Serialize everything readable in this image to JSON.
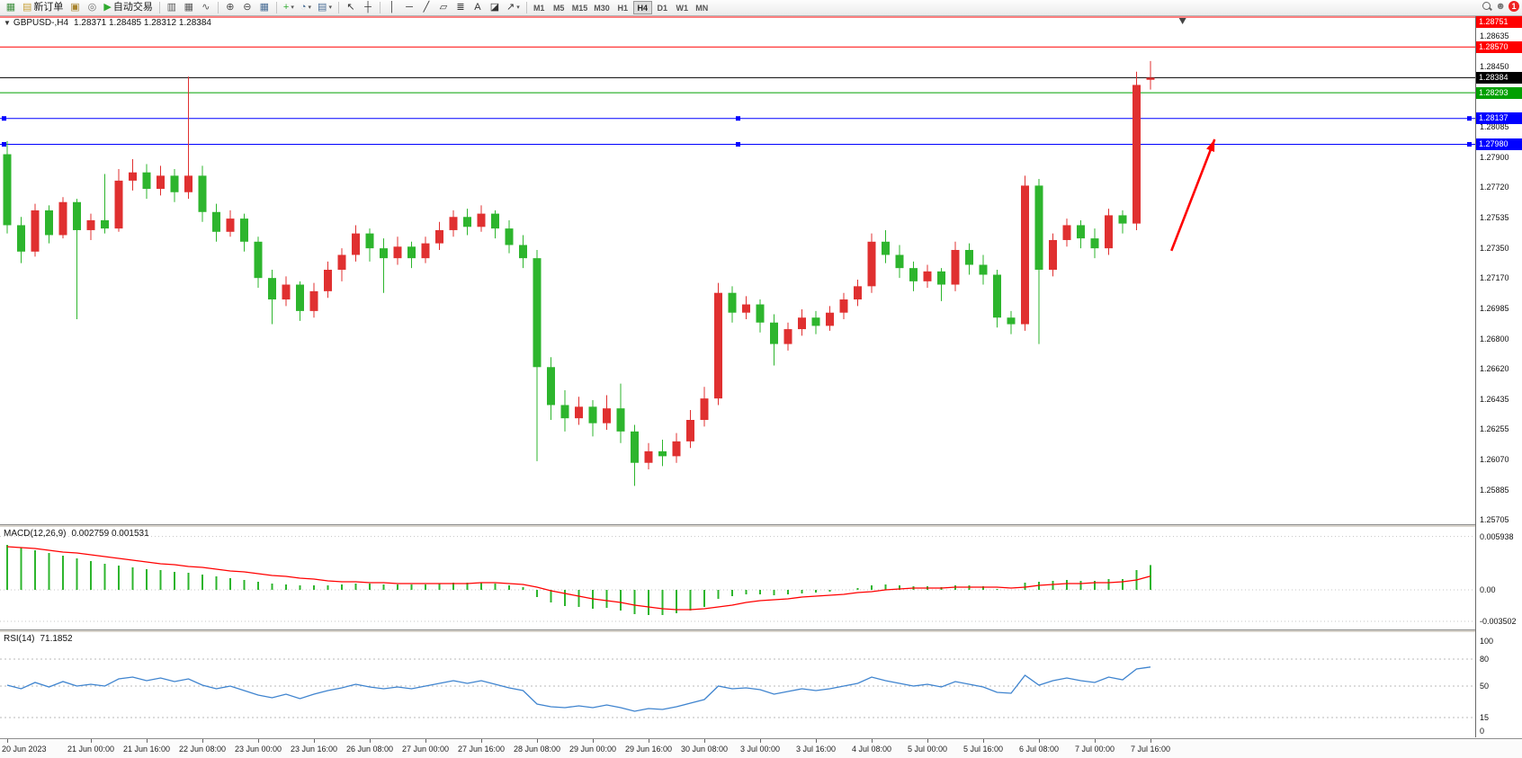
{
  "toolbar": {
    "items": [
      {
        "name": "new-chart-button",
        "type": "icon",
        "glyph": "▦",
        "color": "#3e8f3e"
      },
      {
        "name": "new-order-button",
        "type": "icon-text",
        "glyph": "▤",
        "color": "#c8a23a",
        "label": "新订单"
      },
      {
        "name": "profiles-button",
        "type": "icon",
        "glyph": "▣",
        "color": "#a8842e"
      },
      {
        "name": "notifications-button",
        "type": "icon",
        "glyph": "◎",
        "color": "#6f6f6f"
      },
      {
        "name": "autotrade-button",
        "type": "icon-text",
        "glyph": "▶",
        "color": "#2faa2f",
        "label": "自动交易"
      },
      {
        "type": "sep"
      },
      {
        "name": "bar-chart-button",
        "type": "icon",
        "glyph": "▥",
        "color": "#5a5a5a"
      },
      {
        "name": "candlestick-chart-button",
        "type": "icon",
        "glyph": "▦",
        "color": "#5a5a5a"
      },
      {
        "name": "line-chart-button",
        "type": "icon",
        "glyph": "∿",
        "color": "#5a5a5a"
      },
      {
        "type": "sep"
      },
      {
        "name": "zoom-in-button",
        "type": "icon",
        "glyph": "⊕",
        "color": "#4a4a4a"
      },
      {
        "name": "zoom-out-button",
        "type": "icon",
        "glyph": "⊖",
        "color": "#4a4a4a"
      },
      {
        "name": "tile-windows-button",
        "type": "icon",
        "glyph": "▦",
        "color": "#4a6e96"
      },
      {
        "type": "sep"
      },
      {
        "name": "indicators-button",
        "type": "icon",
        "glyph": "+",
        "color": "#2faa2f",
        "dropdown": true
      },
      {
        "name": "periods-button",
        "type": "icon",
        "glyph": "◔",
        "color": "#4a6e96",
        "dropdown": true
      },
      {
        "name": "templates-button",
        "type": "icon",
        "glyph": "▤",
        "color": "#4a6e96",
        "dropdown": true
      },
      {
        "type": "sep"
      },
      {
        "name": "cursor-button",
        "type": "icon",
        "glyph": "↖",
        "color": "#333333"
      },
      {
        "name": "crosshair-button",
        "type": "icon",
        "glyph": "┼",
        "color": "#333333"
      },
      {
        "type": "sep"
      },
      {
        "name": "vertical-line-button",
        "type": "icon",
        "glyph": "│",
        "color": "#333333"
      },
      {
        "name": "horizontal-line-button",
        "type": "icon",
        "glyph": "─",
        "color": "#333333"
      },
      {
        "name": "trendline-button",
        "type": "icon",
        "glyph": "╱",
        "color": "#333333"
      },
      {
        "name": "channel-button",
        "type": "icon",
        "glyph": "▱",
        "color": "#333333"
      },
      {
        "name": "fibonacci-button",
        "type": "icon",
        "glyph": "≣",
        "color": "#333333"
      },
      {
        "name": "text-button",
        "type": "icon",
        "glyph": "A",
        "color": "#333333"
      },
      {
        "name": "label-button",
        "type": "icon",
        "glyph": "◪",
        "color": "#333333"
      },
      {
        "name": "arrows-button",
        "type": "icon",
        "glyph": "↗",
        "color": "#333333",
        "dropdown": true
      },
      {
        "type": "sep"
      }
    ],
    "timeframes": [
      "M1",
      "M5",
      "M15",
      "M30",
      "H1",
      "H4",
      "D1",
      "W1",
      "MN"
    ],
    "active_timeframe": "H4",
    "right": {
      "user_icon": "☻",
      "badge": "1"
    }
  },
  "chart_data": [
    {
      "type": "candlestick",
      "symbol": "GBPUSD-",
      "period": "H4",
      "title": "GBPUSD-,H4",
      "ohlc_text": "1.28371 1.28485 1.28312 1.28384",
      "collapse_icon": "▼",
      "bull_color": "#e03030",
      "bear_color": "#2db52d",
      "shift_marker_index": 84.3,
      "time_labels": [
        "20 Jun 2023",
        "21 Jun 00:00",
        "21 Jun 16:00",
        "22 Jun 08:00",
        "23 Jun 00:00",
        "23 Jun 16:00",
        "26 Jun 08:00",
        "27 Jun 00:00",
        "27 Jun 16:00",
        "28 Jun 08:00",
        "29 Jun 00:00",
        "29 Jun 16:00",
        "30 Jun 08:00",
        "3 Jul 00:00",
        "3 Jul 16:00",
        "4 Jul 08:00",
        "5 Jul 00:00",
        "5 Jul 16:00",
        "6 Jul 08:00",
        "7 Jul 00:00",
        "7 Jul 16:00"
      ],
      "time_label_indices": [
        0,
        6,
        10,
        14,
        18,
        22,
        26,
        30,
        34,
        38,
        42,
        46,
        50,
        54,
        58,
        62,
        66,
        70,
        74,
        78,
        82
      ],
      "candles": [
        [
          1.2792,
          1.28,
          1.2744,
          1.2749
        ],
        [
          1.2749,
          1.2754,
          1.2726,
          1.2733
        ],
        [
          1.2733,
          1.2762,
          1.273,
          1.2758
        ],
        [
          1.2758,
          1.2761,
          1.2738,
          1.2743
        ],
        [
          1.2743,
          1.2766,
          1.2741,
          1.2763
        ],
        [
          1.2763,
          1.2765,
          1.2692,
          1.2746
        ],
        [
          1.2746,
          1.2756,
          1.274,
          1.2752
        ],
        [
          1.2752,
          1.278,
          1.2744,
          1.2747
        ],
        [
          1.2747,
          1.2783,
          1.2745,
          1.2776
        ],
        [
          1.2776,
          1.2789,
          1.277,
          1.2781
        ],
        [
          1.2781,
          1.2786,
          1.2765,
          1.2771
        ],
        [
          1.2771,
          1.2785,
          1.2767,
          1.2779
        ],
        [
          1.2779,
          1.2783,
          1.2763,
          1.2769
        ],
        [
          1.2769,
          1.2839,
          1.2765,
          1.2779
        ],
        [
          1.2779,
          1.2785,
          1.2751,
          1.2757
        ],
        [
          1.2757,
          1.2762,
          1.2739,
          1.2745
        ],
        [
          1.2745,
          1.2758,
          1.2742,
          1.2753
        ],
        [
          1.2753,
          1.2756,
          1.2733,
          1.2739
        ],
        [
          1.2739,
          1.2742,
          1.2711,
          1.2717
        ],
        [
          1.2717,
          1.2722,
          1.2689,
          1.2704
        ],
        [
          1.2704,
          1.2718,
          1.27,
          1.2713
        ],
        [
          1.2713,
          1.2715,
          1.2691,
          1.2697
        ],
        [
          1.2697,
          1.2714,
          1.2693,
          1.2709
        ],
        [
          1.2709,
          1.2727,
          1.2705,
          1.2722
        ],
        [
          1.2722,
          1.2735,
          1.2715,
          1.2731
        ],
        [
          1.2731,
          1.2749,
          1.2727,
          1.2744
        ],
        [
          1.2744,
          1.2747,
          1.2727,
          1.2735
        ],
        [
          1.2735,
          1.2741,
          1.2708,
          1.2729
        ],
        [
          1.2729,
          1.2742,
          1.2725,
          1.2736
        ],
        [
          1.2736,
          1.2739,
          1.2723,
          1.2729
        ],
        [
          1.2729,
          1.2742,
          1.2726,
          1.2738
        ],
        [
          1.2738,
          1.2751,
          1.2734,
          1.2746
        ],
        [
          1.2746,
          1.2758,
          1.2742,
          1.2754
        ],
        [
          1.2754,
          1.2759,
          1.2743,
          1.2748
        ],
        [
          1.2748,
          1.2761,
          1.2745,
          1.2756
        ],
        [
          1.2756,
          1.2758,
          1.2741,
          1.2747
        ],
        [
          1.2747,
          1.2752,
          1.2732,
          1.2737
        ],
        [
          1.2737,
          1.2743,
          1.2723,
          1.2729
        ],
        [
          1.2729,
          1.2734,
          1.2606,
          1.2663
        ],
        [
          1.2663,
          1.2669,
          1.2631,
          1.264
        ],
        [
          1.264,
          1.2649,
          1.2624,
          1.2632
        ],
        [
          1.2632,
          1.2645,
          1.2628,
          1.2639
        ],
        [
          1.2639,
          1.2643,
          1.2621,
          1.2629
        ],
        [
          1.2629,
          1.2646,
          1.2625,
          1.2638
        ],
        [
          1.2638,
          1.2653,
          1.2617,
          1.2624
        ],
        [
          1.2624,
          1.2628,
          1.2591,
          1.2605
        ],
        [
          1.2605,
          1.2617,
          1.2601,
          1.2612
        ],
        [
          1.2612,
          1.2619,
          1.2603,
          1.2609
        ],
        [
          1.2609,
          1.2623,
          1.2605,
          1.2618
        ],
        [
          1.2618,
          1.2637,
          1.2614,
          1.2631
        ],
        [
          1.2631,
          1.2651,
          1.2627,
          1.2644
        ],
        [
          1.2644,
          1.2714,
          1.264,
          1.2708
        ],
        [
          1.2708,
          1.2712,
          1.269,
          1.2696
        ],
        [
          1.2696,
          1.2706,
          1.2692,
          1.2701
        ],
        [
          1.2701,
          1.2704,
          1.2684,
          1.269
        ],
        [
          1.269,
          1.2695,
          1.2664,
          1.2677
        ],
        [
          1.2677,
          1.269,
          1.2673,
          1.2686
        ],
        [
          1.2686,
          1.2698,
          1.2682,
          1.2693
        ],
        [
          1.2693,
          1.2697,
          1.2683,
          1.2688
        ],
        [
          1.2688,
          1.27,
          1.2685,
          1.2696
        ],
        [
          1.2696,
          1.2708,
          1.2692,
          1.2704
        ],
        [
          1.2704,
          1.2716,
          1.27,
          1.2712
        ],
        [
          1.2712,
          1.2744,
          1.2708,
          1.2739
        ],
        [
          1.2739,
          1.2746,
          1.2726,
          1.2731
        ],
        [
          1.2731,
          1.2737,
          1.2717,
          1.2723
        ],
        [
          1.2723,
          1.2727,
          1.2709,
          1.2715
        ],
        [
          1.2715,
          1.2725,
          1.2711,
          1.2721
        ],
        [
          1.2721,
          1.2723,
          1.2703,
          1.2713
        ],
        [
          1.2713,
          1.2739,
          1.2709,
          1.2734
        ],
        [
          1.2734,
          1.2738,
          1.2719,
          1.2725
        ],
        [
          1.2725,
          1.2731,
          1.2713,
          1.2719
        ],
        [
          1.2719,
          1.2722,
          1.2687,
          1.2693
        ],
        [
          1.2693,
          1.2697,
          1.2683,
          1.2689
        ],
        [
          1.2689,
          1.2779,
          1.2685,
          1.2773
        ],
        [
          1.2773,
          1.2777,
          1.2677,
          1.2722
        ],
        [
          1.2722,
          1.2744,
          1.2718,
          1.274
        ],
        [
          1.274,
          1.2753,
          1.2736,
          1.2749
        ],
        [
          1.2749,
          1.2752,
          1.2735,
          1.2741
        ],
        [
          1.2741,
          1.2747,
          1.2729,
          1.2735
        ],
        [
          1.2735,
          1.2759,
          1.2731,
          1.2755
        ],
        [
          1.2755,
          1.2758,
          1.2744,
          1.275
        ],
        [
          1.275,
          1.2842,
          1.2746,
          1.2834
        ],
        [
          1.28371,
          1.28485,
          1.28312,
          1.28384
        ]
      ],
      "hlines": [
        {
          "price": 1.28751,
          "color": "#ff0000",
          "label": "1.28751",
          "badge_bg": "#ff0000"
        },
        {
          "price": 1.2857,
          "color": "#ff0000",
          "label": "1.28570",
          "badge_bg": "#ff0000"
        },
        {
          "price": 1.28384,
          "color": "#000000",
          "label": "1.28384",
          "badge_bg": "#000000"
        },
        {
          "price": 1.28293,
          "color": "#00a000",
          "label": "1.28293",
          "badge_bg": "#00a000"
        },
        {
          "price": 1.28137,
          "color": "#0000ff",
          "label": "1.28137",
          "badge_bg": "#0000ff",
          "handles": true
        },
        {
          "price": 1.2798,
          "color": "#0000ff",
          "label": "1.27980",
          "badge_bg": "#0000ff",
          "handles": true
        }
      ],
      "plain_axis_labels": [
        {
          "text": "1.28635",
          "value": 1.28635
        },
        {
          "text": "1.28450",
          "value": 1.2845
        },
        {
          "text": "1.28085",
          "value": 1.28085
        },
        {
          "text": "1.27900",
          "value": 1.279
        },
        {
          "text": "1.27720",
          "value": 1.2772
        },
        {
          "text": "1.27535",
          "value": 1.27535
        },
        {
          "text": "1.27350",
          "value": 1.2735
        },
        {
          "text": "1.27170",
          "value": 1.2717
        },
        {
          "text": "1.26985",
          "value": 1.26985
        },
        {
          "text": "1.26800",
          "value": 1.268
        },
        {
          "text": "1.26620",
          "value": 1.2662
        },
        {
          "text": "1.26435",
          "value": 1.26435
        },
        {
          "text": "1.26255",
          "value": 1.26255
        },
        {
          "text": "1.26070",
          "value": 1.2607
        },
        {
          "text": "1.25885",
          "value": 1.25885
        },
        {
          "text": "1.25705",
          "value": 1.25705
        }
      ],
      "arrow": {
        "color": "#ff0000",
        "width": 2.6,
        "from": {
          "index": 83.5,
          "price": 1.27335
        },
        "to": {
          "index": 86.6,
          "price": 1.2801
        }
      }
    },
    {
      "type": "bar",
      "name": "MACD",
      "title": "MACD(12,26,9)",
      "values_text": "0.002759 0.001531",
      "hist_color": "#2db52d",
      "signal_color": "#ff0000",
      "ylim": [
        -0.0042,
        0.0068
      ],
      "axis_labels": [
        {
          "text": "0.005938",
          "value": 0.005938
        },
        {
          "text": "0.00",
          "value": 0
        },
        {
          "text": "-0.003502",
          "value": -0.003502
        }
      ],
      "histogram": [
        0.005,
        0.0047,
        0.0044,
        0.0041,
        0.0038,
        0.0035,
        0.0032,
        0.0029,
        0.0027,
        0.0025,
        0.0023,
        0.0022,
        0.002,
        0.0019,
        0.0017,
        0.0015,
        0.0013,
        0.0011,
        0.0009,
        0.0007,
        0.0006,
        0.0005,
        0.0005,
        0.0005,
        0.0006,
        0.0007,
        0.0007,
        0.0006,
        0.0006,
        0.0006,
        0.0006,
        0.0007,
        0.0008,
        0.0008,
        0.0008,
        0.0007,
        0.0005,
        0.0003,
        -0.0008,
        -0.0014,
        -0.0018,
        -0.0019,
        -0.0021,
        -0.002,
        -0.0023,
        -0.0027,
        -0.0028,
        -0.0028,
        -0.0026,
        -0.0023,
        -0.0019,
        -0.001,
        -0.0007,
        -0.0005,
        -0.0005,
        -0.0006,
        -0.0005,
        -0.0004,
        -0.0003,
        -0.0002,
        0.0,
        0.0002,
        0.0005,
        0.0006,
        0.0005,
        0.0004,
        0.0004,
        0.0003,
        0.0005,
        0.0005,
        0.0004,
        0.0001,
        0.0,
        0.0008,
        0.0009,
        0.001,
        0.0011,
        0.001,
        0.001,
        0.0012,
        0.0012,
        0.0022,
        0.002759
      ],
      "signal": [
        0.0048,
        0.0047,
        0.0046,
        0.0044,
        0.0042,
        0.0041,
        0.0039,
        0.0037,
        0.0035,
        0.0033,
        0.0031,
        0.0029,
        0.0028,
        0.0026,
        0.0025,
        0.0023,
        0.0021,
        0.002,
        0.0018,
        0.0016,
        0.0015,
        0.0013,
        0.0012,
        0.001,
        0.0009,
        0.0009,
        0.0008,
        0.0008,
        0.0007,
        0.0007,
        0.0007,
        0.0007,
        0.0007,
        0.0007,
        0.0008,
        0.0008,
        0.0007,
        0.0006,
        0.0003,
        -0.0001,
        -0.0004,
        -0.0007,
        -0.001,
        -0.0012,
        -0.0014,
        -0.0017,
        -0.0019,
        -0.0021,
        -0.0022,
        -0.0022,
        -0.0021,
        -0.0019,
        -0.0017,
        -0.0014,
        -0.0012,
        -0.0011,
        -0.001,
        -0.0008,
        -0.0007,
        -0.0006,
        -0.0005,
        -0.0003,
        -0.0002,
        0.0,
        0.0001,
        0.0002,
        0.0002,
        0.0002,
        0.0003,
        0.0003,
        0.0003,
        0.0003,
        0.0002,
        0.0003,
        0.0005,
        0.0006,
        0.0007,
        0.0007,
        0.0008,
        0.0008,
        0.0009,
        0.0011,
        0.001531
      ]
    },
    {
      "type": "line",
      "name": "RSI",
      "title": "RSI(14)",
      "value_text": "71.1852",
      "line_color": "#3f84cf",
      "range": [
        0,
        100
      ],
      "levels": [
        80,
        50,
        15
      ],
      "axis_labels": [
        {
          "text": "100",
          "value": 100
        },
        {
          "text": "80",
          "value": 80
        },
        {
          "text": "50",
          "value": 50
        },
        {
          "text": "15",
          "value": 15
        },
        {
          "text": "0",
          "value": 0
        }
      ],
      "values": [
        51,
        47,
        54,
        49,
        55,
        50,
        52,
        50,
        58,
        60,
        56,
        59,
        55,
        58,
        51,
        47,
        50,
        45,
        40,
        37,
        41,
        36,
        41,
        45,
        48,
        52,
        49,
        47,
        49,
        47,
        50,
        53,
        56,
        53,
        56,
        52,
        48,
        45,
        30,
        27,
        26,
        28,
        26,
        29,
        26,
        22,
        25,
        24,
        27,
        31,
        35,
        50,
        47,
        48,
        46,
        41,
        44,
        47,
        45,
        47,
        50,
        53,
        60,
        56,
        53,
        50,
        52,
        49,
        55,
        52,
        49,
        43,
        42,
        62,
        51,
        56,
        59,
        56,
        54,
        60,
        57,
        69,
        71.1852
      ]
    }
  ]
}
